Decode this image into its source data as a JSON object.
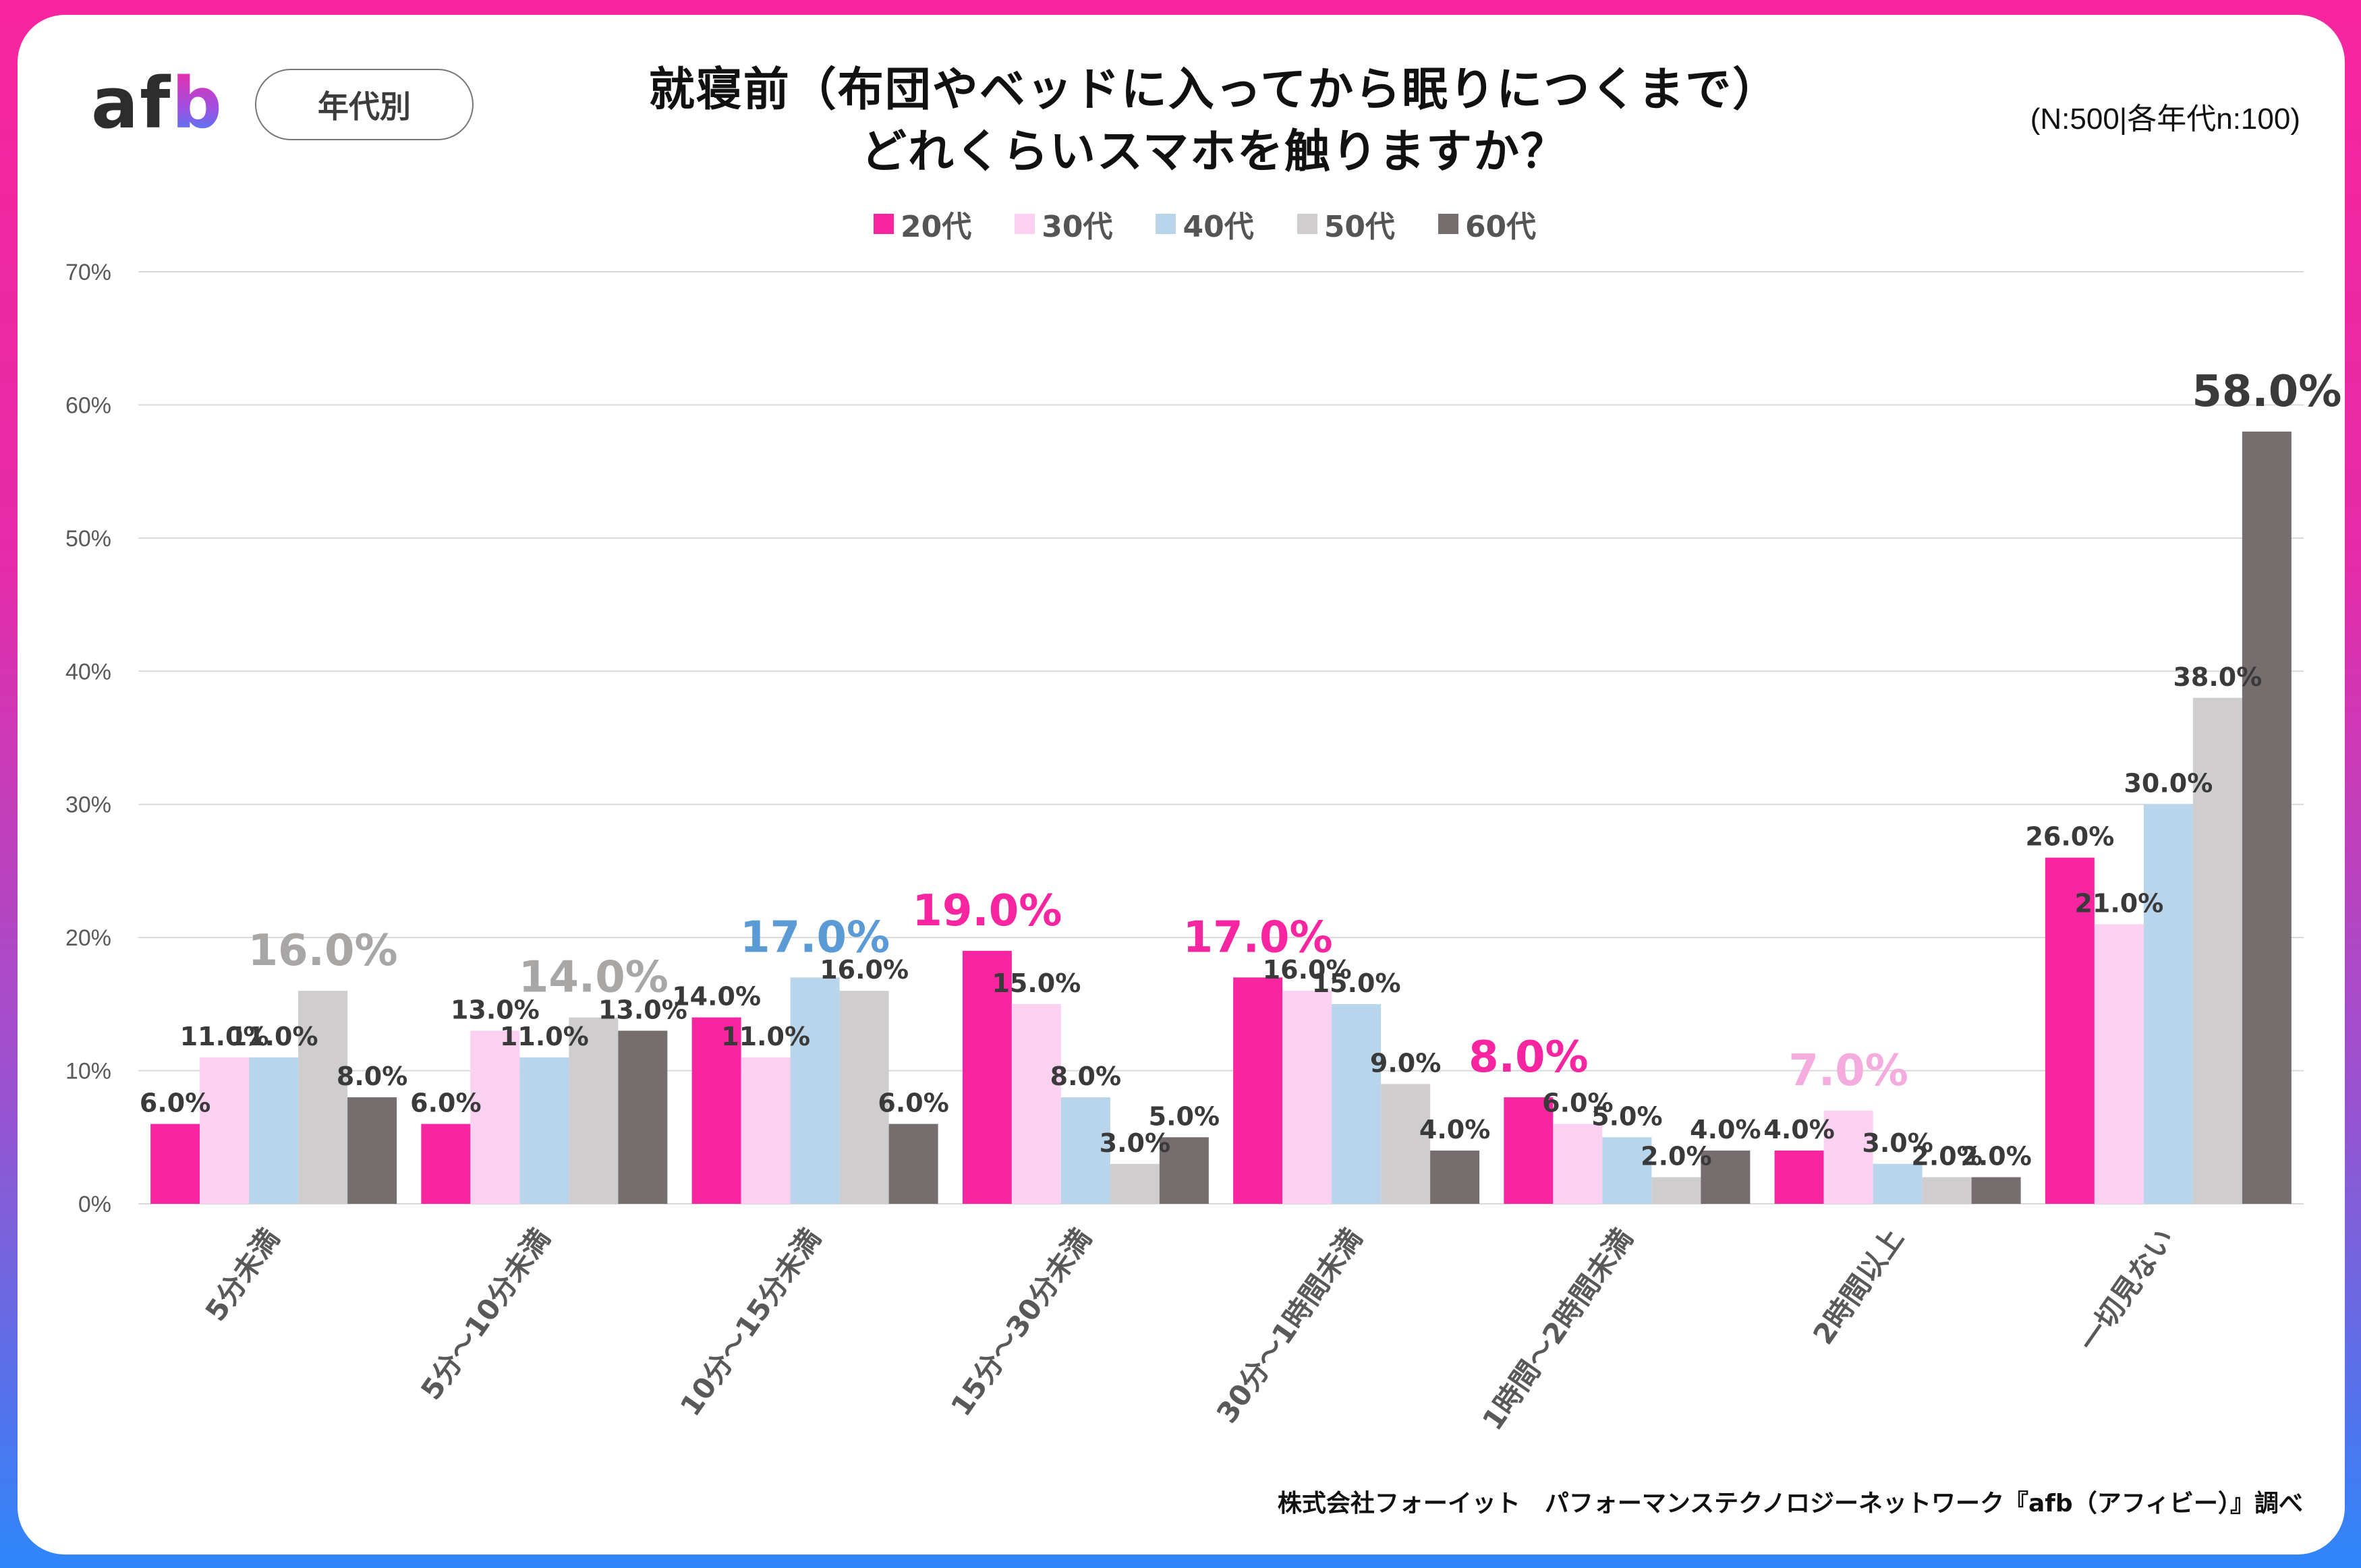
{
  "header": {
    "logo_text_main": "af",
    "logo_text_accent": "b",
    "badge_label": "年代別",
    "title_line1": "就寝前（布団やベッドに入ってから眠りにつくまで）",
    "title_line2": "どれくらいスマホを触りますか？",
    "sample_note": "(N:500|各年代n:100)"
  },
  "footer": {
    "credit": "株式会社フォーイット　パフォーマンステクノロジーネットワーク『afb（アフィビー）』調べ"
  },
  "colors": {
    "border_top": "#f7259f",
    "border_bottom": "#2e86fb",
    "axis_text": "#595959",
    "label_text": "#3a3a3a",
    "grid": "#d9d9d9"
  },
  "chart_data": {
    "type": "bar",
    "title": "就寝前（布団やベッドに入ってから眠りにつくまで）どれくらいスマホを触りますか？",
    "xlabel": "",
    "ylabel": "",
    "ylim": [
      0,
      70
    ],
    "yticks": [
      0,
      10,
      20,
      30,
      40,
      50,
      60,
      70
    ],
    "ytick_labels": [
      "0%",
      "10%",
      "20%",
      "30%",
      "40%",
      "50%",
      "60%",
      "70%"
    ],
    "grid": true,
    "legend_position": "top-center",
    "categories": [
      "5分未満",
      "5分～10分未満",
      "10分～15分未満",
      "15分～30分未満",
      "30分～1時間未満",
      "1時間～2時間未満",
      "2時間以上",
      "一切見ない"
    ],
    "series": [
      {
        "name": "20代",
        "color": "#f7259f",
        "values": [
          6.0,
          6.0,
          14.0,
          19.0,
          17.0,
          8.0,
          4.0,
          26.0
        ]
      },
      {
        "name": "30代",
        "color": "#fbd1f1",
        "values": [
          11.0,
          13.0,
          11.0,
          15.0,
          16.0,
          6.0,
          7.0,
          21.0
        ]
      },
      {
        "name": "40代",
        "color": "#b9d5ec",
        "values": [
          11.0,
          11.0,
          17.0,
          8.0,
          15.0,
          5.0,
          3.0,
          30.0
        ]
      },
      {
        "name": "50代",
        "color": "#d0cdce",
        "values": [
          16.0,
          14.0,
          16.0,
          3.0,
          9.0,
          2.0,
          2.0,
          38.0
        ]
      },
      {
        "name": "60代",
        "color": "#766e6e",
        "values": [
          8.0,
          13.0,
          6.0,
          5.0,
          4.0,
          4.0,
          2.0,
          58.0
        ]
      }
    ],
    "highlights": [
      {
        "category_index": 0,
        "series_index": 3,
        "color": "#a9a6a6"
      },
      {
        "category_index": 1,
        "series_index": 3,
        "color": "#a9a6a6"
      },
      {
        "category_index": 2,
        "series_index": 2,
        "color": "#5a9bd5"
      },
      {
        "category_index": 3,
        "series_index": 0,
        "color": "#f7259f"
      },
      {
        "category_index": 4,
        "series_index": 0,
        "color": "#f7259f"
      },
      {
        "category_index": 5,
        "series_index": 0,
        "color": "#f7259f"
      },
      {
        "category_index": 6,
        "series_index": 1,
        "color": "#f4acdf"
      },
      {
        "category_index": 7,
        "series_index": 4,
        "color": "#3a3a3a"
      }
    ],
    "value_format": "{v}%"
  }
}
